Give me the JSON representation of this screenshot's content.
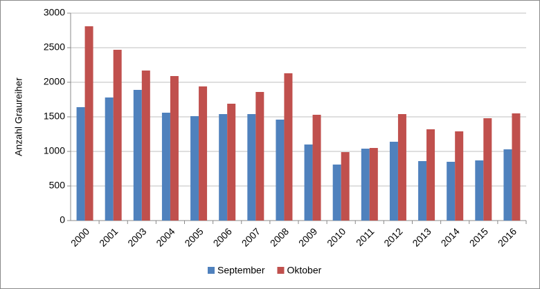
{
  "chart_data": {
    "type": "grouped_bar",
    "y_label": "Anzahl Graureiher",
    "categories": [
      "2000",
      "2001",
      "2003",
      "2004",
      "2005",
      "2006",
      "2007",
      "2008",
      "2009",
      "2010",
      "2011",
      "2012",
      "2013",
      "2014",
      "2015",
      "2016"
    ],
    "series": [
      {
        "name": "September",
        "color": "#4f81bd",
        "values": [
          1640,
          1780,
          1890,
          1560,
          1510,
          1540,
          1540,
          1460,
          1100,
          810,
          1040,
          1140,
          860,
          850,
          870,
          1030
        ]
      },
      {
        "name": "Oktober",
        "color": "#c0504d",
        "values": [
          2810,
          2470,
          2170,
          2090,
          1940,
          1690,
          1860,
          2130,
          1530,
          990,
          1050,
          1540,
          1320,
          1290,
          1480,
          1550
        ]
      }
    ],
    "ylim": [
      0,
      3000
    ],
    "yticks": [
      0,
      500,
      1000,
      1500,
      2000,
      2500,
      3000
    ],
    "grid": true,
    "legend": "bottom"
  }
}
